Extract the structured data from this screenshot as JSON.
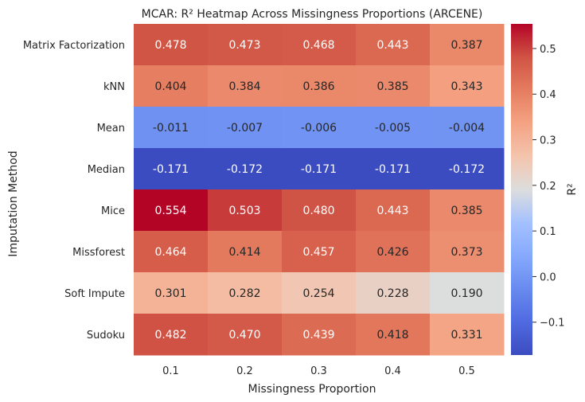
{
  "chart_data": {
    "type": "heatmap",
    "title": "MCAR: R² Heatmap Across Missingness Proportions (ARCENE)",
    "xlabel": "Missingness Proportion",
    "ylabel": "Imputation Method",
    "x_categories": [
      "0.1",
      "0.2",
      "0.3",
      "0.4",
      "0.5"
    ],
    "y_categories": [
      "Matrix Factorization",
      "kNN",
      "Mean",
      "Median",
      "Mice",
      "Missforest",
      "Soft Impute",
      "Sudoku"
    ],
    "values": [
      [
        0.478,
        0.473,
        0.468,
        0.443,
        0.387
      ],
      [
        0.404,
        0.384,
        0.386,
        0.385,
        0.343
      ],
      [
        -0.011,
        -0.007,
        -0.006,
        -0.005,
        -0.004
      ],
      [
        -0.171,
        -0.172,
        -0.171,
        -0.171,
        -0.172
      ],
      [
        0.554,
        0.503,
        0.48,
        0.443,
        0.385
      ],
      [
        0.464,
        0.414,
        0.457,
        0.426,
        0.373
      ],
      [
        0.301,
        0.282,
        0.254,
        0.228,
        0.19
      ],
      [
        0.482,
        0.47,
        0.439,
        0.418,
        0.331
      ]
    ],
    "cell_labels": [
      [
        "0.478",
        "0.473",
        "0.468",
        "0.443",
        "0.387"
      ],
      [
        "0.404",
        "0.384",
        "0.386",
        "0.385",
        "0.343"
      ],
      [
        "-0.011",
        "-0.007",
        "-0.006",
        "-0.005",
        "-0.004"
      ],
      [
        "-0.171",
        "-0.172",
        "-0.171",
        "-0.171",
        "-0.172"
      ],
      [
        "0.554",
        "0.503",
        "0.480",
        "0.443",
        "0.385"
      ],
      [
        "0.464",
        "0.414",
        "0.457",
        "0.426",
        "0.373"
      ],
      [
        "0.301",
        "0.282",
        "0.254",
        "0.228",
        "0.190"
      ],
      [
        "0.482",
        "0.470",
        "0.439",
        "0.418",
        "0.331"
      ]
    ],
    "colormap": "coolwarm",
    "vmin": -0.172,
    "vmax": 0.554,
    "colorbar": {
      "label": "R²",
      "ticks": [
        -0.1,
        0.0,
        0.1,
        0.2,
        0.3,
        0.4,
        0.5
      ],
      "tick_labels": [
        "−0.1",
        "0.0",
        "0.1",
        "0.2",
        "0.3",
        "0.4",
        "0.5"
      ]
    },
    "grid": false,
    "legend": "none"
  }
}
